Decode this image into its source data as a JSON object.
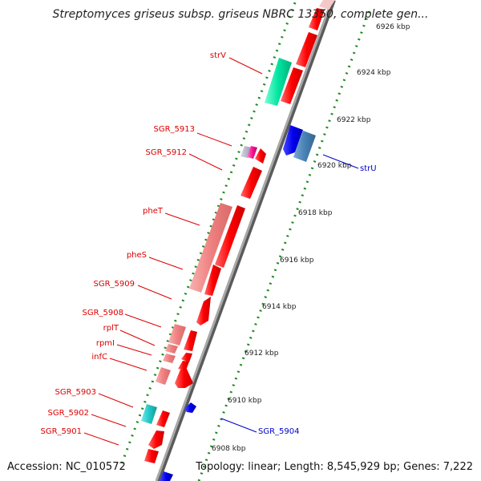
{
  "title": "Streptomyces griseus subsp. griseus NBRC 13350, complete gen...",
  "accession": "Accession: NC_010572",
  "topology": "Topology: linear; Length: 8,545,929 bp; Genes: 7,222",
  "ticks": [
    "6908 kbp",
    "6910 kbp",
    "6912 kbp",
    "6914 kbp",
    "6916 kbp",
    "6918 kbp",
    "6920 kbp",
    "6922 kbp",
    "6924 kbp",
    "6926 kbp"
  ],
  "labels_red": [
    "strV",
    "SGR_5913",
    "SGR_5912",
    "pheT",
    "pheS",
    "SGR_5909",
    "SGR_5908",
    "rplT",
    "rpmI",
    "infC",
    "SGR_5903",
    "SGR_5902",
    "SGR_5901"
  ],
  "labels_blue": [
    "strU",
    "SGR_5904"
  ],
  "colors": {
    "gene_red": "#ff0000",
    "gene_pink": "#f08080",
    "gene_blue": "#0000ee",
    "gene_steel": "#4682b4",
    "gene_green": "#00e5a0",
    "gene_cyan": "#20c8c8",
    "gene_magenta": "#ff1493",
    "axis": "#8a8a8a",
    "dots": "#1f8a1f",
    "label_red": "#dd0000",
    "label_blue": "#0000cc"
  }
}
